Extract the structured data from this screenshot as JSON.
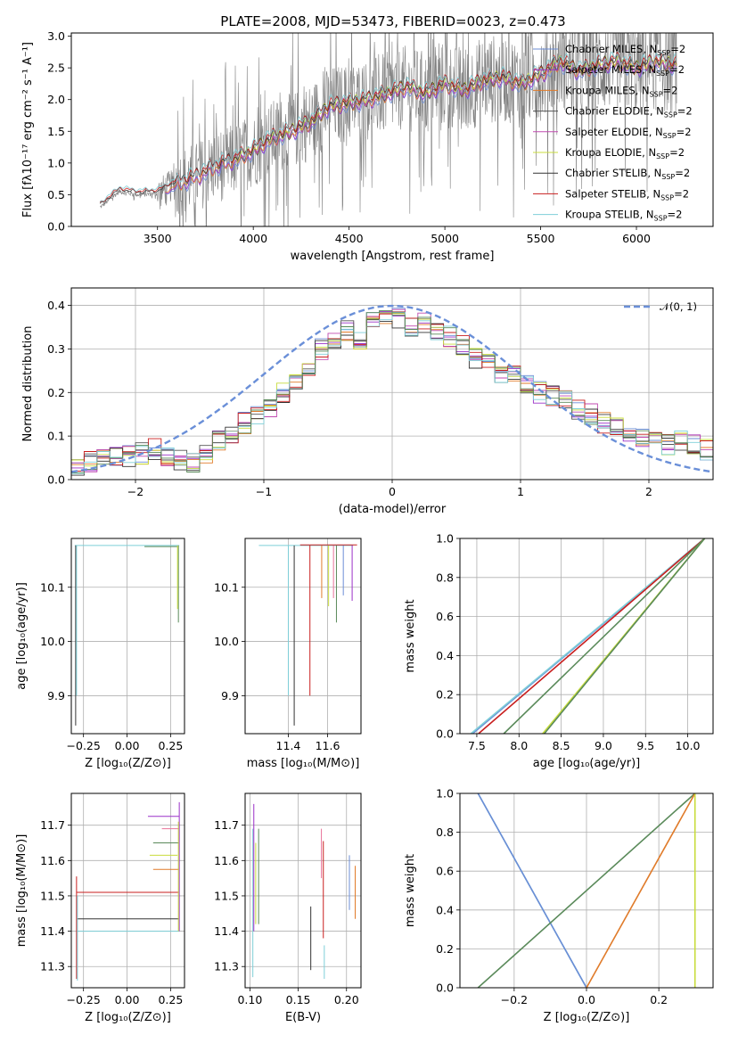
{
  "figure": {
    "title": "PLATE=2008, MJD=53473, FIBERID=0023, z=0.473"
  },
  "colors": {
    "chabrier_miles": "#6b8dd6",
    "salpeter_miles": "#9b30c8",
    "kroupa_miles": "#e07b2a",
    "chabrier_elodie": "#555555",
    "salpeter_elodie": "#c04ab0",
    "kroupa_elodie": "#c8dc3c",
    "chabrier_stelib": "#333333",
    "salpeter_stelib": "#c81e1e",
    "kroupa_stelib": "#7ecfd8",
    "green": "#5a8a5a",
    "pink": "#e8739a",
    "normal": "#6a8fd8",
    "data_gray": "#808080"
  },
  "chart_data": [
    {
      "id": "spectrum",
      "type": "line",
      "title": "PLATE=2008, MJD=53473, FIBERID=0023, z=0.473",
      "xlabel": "wavelength [Angstrom, rest frame]",
      "ylabel": "Flux [fλ10⁻¹⁷ erg cm⁻² s⁻¹ A⁻¹]",
      "xlim": [
        3050,
        6400
      ],
      "ylim": [
        0,
        3.05
      ],
      "xticks": [
        "3500",
        "4000",
        "4500",
        "5000",
        "5500",
        "6000"
      ],
      "yticks": [
        "0.0",
        "0.5",
        "1.0",
        "1.5",
        "2.0",
        "2.5",
        "3.0"
      ],
      "grid": false,
      "legend_position": "upper-right",
      "legend": [
        {
          "label": "Chabrier MILES, N",
          "sub": "SSP",
          "tail": "=2",
          "color_key": "chabrier_miles"
        },
        {
          "label": "Salpeter MILES, N",
          "sub": "SSP",
          "tail": "=2",
          "color_key": "salpeter_miles"
        },
        {
          "label": "Kroupa MILES, N",
          "sub": "SSP",
          "tail": "=2",
          "color_key": "kroupa_miles"
        },
        {
          "label": "Chabrier ELODIE, N",
          "sub": "SSP",
          "tail": "=2",
          "color_key": "chabrier_elodie"
        },
        {
          "label": "Salpeter ELODIE, N",
          "sub": "SSP",
          "tail": "=2",
          "color_key": "salpeter_elodie"
        },
        {
          "label": "Kroupa ELODIE, N",
          "sub": "SSP",
          "tail": "=2",
          "color_key": "kroupa_elodie"
        },
        {
          "label": "Chabrier STELIB, N",
          "sub": "SSP",
          "tail": "=2",
          "color_key": "chabrier_stelib"
        },
        {
          "label": "Salpeter STELIB, N",
          "sub": "SSP",
          "tail": "=2",
          "color_key": "salpeter_stelib"
        },
        {
          "label": "Kroupa STELIB, N",
          "sub": "SSP",
          "tail": "=2",
          "color_key": "kroupa_stelib"
        }
      ],
      "model_trend": {
        "x": [
          3200,
          3300,
          3400,
          3500,
          3600,
          3700,
          3800,
          3900,
          4000,
          4100,
          4200,
          4300,
          4400,
          4500,
          4600,
          4700,
          4800,
          4900,
          5000,
          5100,
          5200,
          5300,
          5400,
          5500,
          5600,
          5700,
          5800,
          5900,
          6000,
          6100,
          6200
        ],
        "y": [
          0.3,
          0.55,
          0.5,
          0.52,
          0.68,
          0.78,
          0.95,
          1.05,
          1.2,
          1.4,
          1.5,
          1.65,
          1.9,
          1.95,
          2.0,
          2.1,
          2.2,
          2.1,
          2.25,
          2.15,
          2.3,
          2.35,
          2.25,
          2.4,
          2.6,
          2.45,
          2.55,
          2.6,
          2.5,
          2.6,
          2.55
        ]
      }
    },
    {
      "id": "residuals",
      "type": "histogram",
      "xlabel": "(data-model)/error",
      "ylabel": "Normed distribution",
      "xlim": [
        -2.5,
        2.5
      ],
      "ylim": [
        0,
        0.44
      ],
      "xticks": [
        "−2",
        "−1",
        "0",
        "1",
        "2"
      ],
      "yticks": [
        "0.0",
        "0.1",
        "0.2",
        "0.3",
        "0.4"
      ],
      "grid": true,
      "legend_position": "upper-right",
      "normal_label": "𝒩(0, 1)",
      "bins": [
        -2.5,
        -2.4,
        -2.3,
        -2.2,
        -2.1,
        -2.0,
        -1.9,
        -1.8,
        -1.7,
        -1.6,
        -1.5,
        -1.4,
        -1.3,
        -1.2,
        -1.1,
        -1.0,
        -0.9,
        -0.8,
        -0.7,
        -0.6,
        -0.5,
        -0.4,
        -0.3,
        -0.2,
        -0.1,
        0.0,
        0.1,
        0.2,
        0.3,
        0.4,
        0.5,
        0.6,
        0.7,
        0.8,
        0.9,
        1.0,
        1.1,
        1.2,
        1.3,
        1.4,
        1.5,
        1.6,
        1.7,
        1.8,
        1.9,
        2.0,
        2.1,
        2.2,
        2.3,
        2.4,
        2.5
      ],
      "hist_mean": [
        0.03,
        0.04,
        0.045,
        0.05,
        0.055,
        0.06,
        0.07,
        0.05,
        0.045,
        0.04,
        0.06,
        0.09,
        0.1,
        0.13,
        0.15,
        0.16,
        0.2,
        0.22,
        0.26,
        0.3,
        0.32,
        0.34,
        0.32,
        0.36,
        0.38,
        0.37,
        0.35,
        0.36,
        0.34,
        0.33,
        0.31,
        0.28,
        0.27,
        0.24,
        0.25,
        0.22,
        0.2,
        0.19,
        0.18,
        0.16,
        0.15,
        0.13,
        0.12,
        0.11,
        0.1,
        0.09,
        0.08,
        0.09,
        0.08,
        0.07
      ]
    },
    {
      "id": "age_vs_Z",
      "type": "line",
      "xlabel": "Z [log₁₀(Z/Z⊙)]",
      "ylabel": "age  [log₁₀(age/yr)]",
      "xlim": [
        -0.32,
        0.33
      ],
      "ylim": [
        9.83,
        10.19
      ],
      "xticks": [
        "−0.25",
        "0.00",
        "0.25"
      ],
      "yticks": [
        "9.9",
        "10.0",
        "10.1"
      ],
      "grid": true
    },
    {
      "id": "age_vs_mass",
      "type": "line",
      "xlabel": "mass [log₁₀(M/M⊙)]",
      "ylabel": "",
      "xlim": [
        11.18,
        11.77
      ],
      "ylim": [
        9.83,
        10.19
      ],
      "xticks": [
        "11.4",
        "11.6"
      ],
      "yticks": [
        "9.9",
        "10.0",
        "10.1"
      ],
      "grid": true
    },
    {
      "id": "massweight_vs_age",
      "type": "line",
      "xlabel": "age  [log₁₀(age/yr)]",
      "ylabel": "mass weight",
      "xlim": [
        7.3,
        10.3
      ],
      "ylim": [
        0,
        1
      ],
      "xticks": [
        "7.5",
        "8.0",
        "8.5",
        "9.0",
        "9.5",
        "10.0"
      ],
      "yticks": [
        "0.0",
        "0.2",
        "0.4",
        "0.6",
        "0.8",
        "1.0"
      ],
      "grid": true,
      "series": [
        {
          "color_key": "chabrier_miles",
          "x": [
            7.45,
            10.2
          ],
          "y": [
            0,
            1
          ]
        },
        {
          "color_key": "kroupa_stelib",
          "x": [
            7.43,
            10.2
          ],
          "y": [
            0,
            1
          ]
        },
        {
          "color_key": "salpeter_stelib",
          "x": [
            7.52,
            10.2
          ],
          "y": [
            0,
            1
          ]
        },
        {
          "color_key": "green",
          "x": [
            7.82,
            10.2
          ],
          "y": [
            0,
            1
          ]
        },
        {
          "color_key": "kroupa_elodie",
          "x": [
            8.28,
            10.2
          ],
          "y": [
            0,
            1
          ]
        },
        {
          "color_key": "green",
          "x": [
            8.3,
            10.2
          ],
          "y": [
            0,
            1
          ]
        }
      ]
    },
    {
      "id": "mass_vs_Z",
      "type": "line",
      "xlabel": "Z [log₁₀(Z/Z⊙)]",
      "ylabel": "mass [log₁₀(M/M⊙)]",
      "xlim": [
        -0.32,
        0.33
      ],
      "ylim": [
        11.24,
        11.79
      ],
      "xticks": [
        "−0.25",
        "0.00",
        "0.25"
      ],
      "yticks": [
        "11.3",
        "11.4",
        "11.5",
        "11.6",
        "11.7"
      ],
      "grid": true
    },
    {
      "id": "mass_vs_ebv",
      "type": "line",
      "xlabel": "E(B-V)",
      "ylabel": "",
      "xlim": [
        0.095,
        0.215
      ],
      "ylim": [
        11.24,
        11.79
      ],
      "xticks": [
        "0.10",
        "0.15",
        "0.20"
      ],
      "yticks": [
        "11.3",
        "11.4",
        "11.5",
        "11.6",
        "11.7"
      ],
      "grid": true
    },
    {
      "id": "massweight_vs_Z",
      "type": "line",
      "xlabel": "Z [log₁₀(Z/Z⊙)]",
      "ylabel": "mass weight",
      "xlim": [
        -0.35,
        0.35
      ],
      "ylim": [
        0,
        1
      ],
      "xticks": [
        "−0.2",
        "0.0",
        "0.2"
      ],
      "yticks": [
        "0.0",
        "0.2",
        "0.4",
        "0.6",
        "0.8",
        "1.0"
      ],
      "grid": true,
      "series": [
        {
          "color_key": "kroupa_stelib",
          "x": [
            -0.3,
            0.0
          ],
          "y": [
            1,
            0
          ]
        },
        {
          "color_key": "chabrier_miles",
          "x": [
            -0.3,
            0.0
          ],
          "y": [
            1,
            0
          ]
        },
        {
          "color_key": "green",
          "x": [
            -0.3,
            0.3
          ],
          "y": [
            0,
            1
          ]
        },
        {
          "color_key": "kroupa_miles",
          "x": [
            0.0,
            0.3
          ],
          "y": [
            0,
            1
          ]
        },
        {
          "color_key": "kroupa_elodie",
          "x": [
            0.3,
            0.3
          ],
          "y": [
            0,
            1
          ]
        }
      ]
    }
  ]
}
